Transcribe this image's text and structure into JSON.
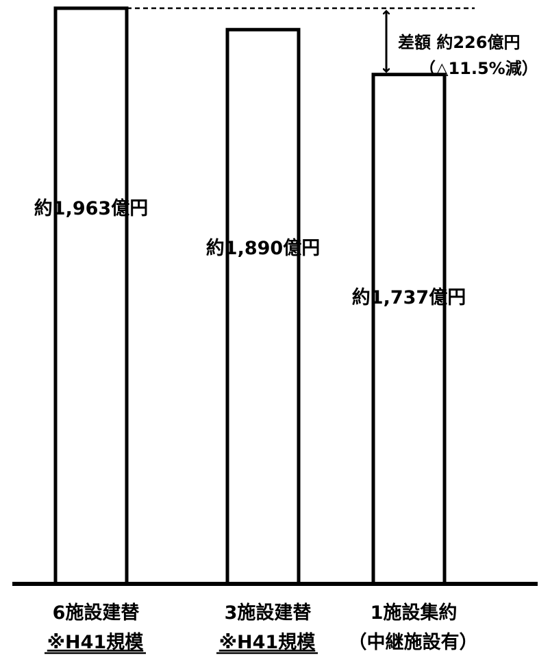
{
  "chart_data": {
    "type": "bar",
    "categories": [
      {
        "line1": "6施設建替",
        "line2": "※H41規模",
        "line2_underlined": true
      },
      {
        "line1": "3施設建替",
        "line2": "※H41規模",
        "line2_underlined": true
      },
      {
        "line1": "1施設集約",
        "line2": "（中継施設有）",
        "line2_underlined": false
      }
    ],
    "values": [
      1963,
      1890,
      1737
    ],
    "value_labels": [
      "約1,963億円",
      "約1,890億円",
      "約1,737億円"
    ],
    "unit": "億円",
    "ylim": [
      0,
      1963
    ],
    "grid": false,
    "annotation": {
      "from_bar": 0,
      "to_bar": 2,
      "line1": "差額 約226億円",
      "line2": "（△11.5%減）"
    },
    "colors": {
      "bar_fill": "#ffffff",
      "bar_stroke": "#000000",
      "text": "#000000"
    }
  }
}
